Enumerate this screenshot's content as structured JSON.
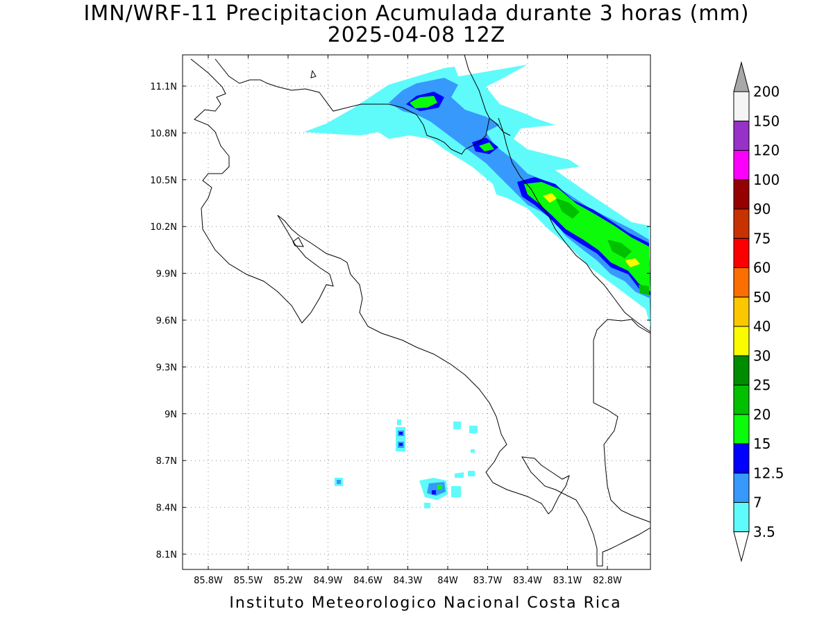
{
  "title": {
    "line1": "IMN/WRF-11 Precipitacion Acumulada durante 3 horas (mm)",
    "line2": "2025-04-08 12Z"
  },
  "footer": "Instituto Meteorologico Nacional Costa Rica",
  "axes": {
    "x_ticks": [
      "85.8W",
      "85.5W",
      "85.2W",
      "84.9W",
      "84.6W",
      "84.3W",
      "84W",
      "83.7W",
      "83.4W",
      "83.1W",
      "82.8W"
    ],
    "y_ticks": [
      "11.1N",
      "10.8N",
      "10.5N",
      "10.2N",
      "9.9N",
      "9.6N",
      "9.3N",
      "9N",
      "8.7N",
      "8.4N",
      "8.1N"
    ],
    "grid": "dotted"
  },
  "colorbar": {
    "levels": [
      "3.5",
      "7",
      "12.5",
      "15",
      "20",
      "25",
      "30",
      "40",
      "50",
      "60",
      "75",
      "90",
      "100",
      "120",
      "150",
      "200"
    ],
    "colors": [
      "#5ffbfb",
      "#3799fb",
      "#0000fb",
      "#0bfb0b",
      "#00c000",
      "#008c00",
      "#fbfb00",
      "#fbc800",
      "#fb6e00",
      "#fb0000",
      "#c83200",
      "#960000",
      "#fb00fb",
      "#9632c8",
      "#f5f5f5"
    ],
    "upper_arrow_color": "#a8a8a8",
    "lower_arrow_color": "#ffffff"
  }
}
